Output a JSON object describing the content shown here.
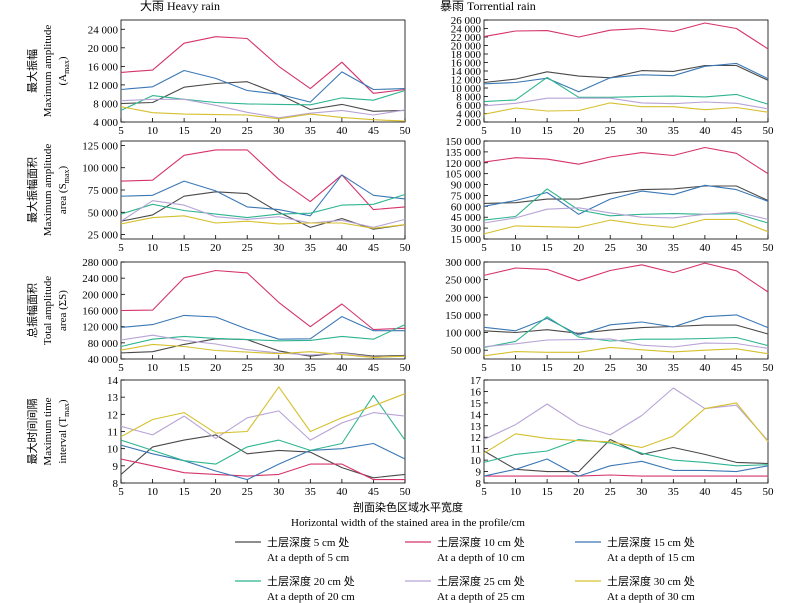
{
  "figure": {
    "column_titles": [
      "大雨 Heavy rain",
      "暴雨 Torrential rain"
    ],
    "row_labels": [
      {
        "zh": "最大振幅",
        "en": "Maximum amplitude",
        "sym": "(A",
        "sub": "max",
        "close": ")"
      },
      {
        "zh": "最大振幅面积",
        "en": "Maximum amplitude",
        "en2": "area",
        "sym": " (S",
        "sub": "max",
        "close": ")"
      },
      {
        "zh": "总振幅面积",
        "en": "Total amplitude",
        "en2": "area (ΣS)"
      },
      {
        "zh": "最大时间间隔",
        "en": "Maximum time",
        "en2": "interval (T",
        "sub": "max",
        "close": ")"
      }
    ],
    "xlabel_zh": "剖面染色区域水平宽度",
    "xlabel_en": "Horizontal width of the stained area in the profile/cm"
  },
  "legend": [
    {
      "zh": "土层深度 5 cm 处",
      "en": "At a depth of 5 cm",
      "color": "#4a4a4a"
    },
    {
      "zh": "土层深度 10 cm 处",
      "en": "At a depth of 10 cm",
      "color": "#d6336c"
    },
    {
      "zh": "土层深度 15 cm 处",
      "en": "At a depth of 15 cm",
      "color": "#3b78b5"
    },
    {
      "zh": "土层深度 20 cm 处",
      "en": "At a depth of 20 cm",
      "color": "#2eb58f"
    },
    {
      "zh": "土层深度 25 cm 处",
      "en": "At a depth of 25 cm",
      "color": "#b7a3d6"
    },
    {
      "zh": "土层深度 30 cm 处",
      "en": "At a depth of 30 cm",
      "color": "#d6c02e"
    }
  ],
  "chart_data": [
    {
      "type": "line",
      "panel": "heavy-amplitude",
      "x": [
        5,
        10,
        15,
        20,
        25,
        30,
        35,
        40,
        45,
        50
      ],
      "ylim": [
        4000,
        26000
      ],
      "yticks": [
        4000,
        8000,
        12000,
        16000,
        20000,
        24000
      ],
      "ytick_labels": [
        "4 000",
        "8 000",
        "12 000",
        "16 000",
        "20 000",
        "24 000"
      ],
      "series": [
        {
          "values": [
            8000,
            8200,
            11500,
            12300,
            12700,
            10000,
            6700,
            7800,
            6300,
            6500
          ]
        },
        {
          "values": [
            14700,
            15200,
            21000,
            22400,
            22000,
            16000,
            11200,
            16900,
            10200,
            11000
          ]
        },
        {
          "values": [
            11000,
            11600,
            15100,
            13400,
            10800,
            10000,
            8300,
            14800,
            11000,
            11200
          ]
        },
        {
          "values": [
            6500,
            9700,
            8900,
            8200,
            7900,
            7800,
            7700,
            9200,
            8700,
            10800
          ]
        },
        {
          "values": [
            8600,
            8900,
            8900,
            7600,
            6100,
            4900,
            5900,
            6500,
            5500,
            6600
          ]
        },
        {
          "values": [
            7300,
            6000,
            5700,
            5600,
            5500,
            4700,
            5700,
            5000,
            4500,
            4200
          ]
        }
      ]
    },
    {
      "type": "line",
      "panel": "torrential-amplitude",
      "x": [
        5,
        10,
        15,
        20,
        25,
        30,
        35,
        40,
        45,
        50
      ],
      "ylim": [
        2000,
        26000
      ],
      "yticks": [
        2000,
        4000,
        6000,
        8000,
        10000,
        12000,
        14000,
        16000,
        18000,
        20000,
        22000,
        24000,
        26000
      ],
      "ytick_labels": [
        "2 000",
        "4 000",
        "6 000",
        "8 000",
        "10 000",
        "12 000",
        "14 000",
        "16 000",
        "18 000",
        "20 000",
        "22 000",
        "24 000",
        "26 000"
      ],
      "series": [
        {
          "values": [
            11300,
            12100,
            13800,
            12800,
            12400,
            14100,
            13900,
            15300,
            15300,
            11800
          ]
        },
        {
          "values": [
            22100,
            23400,
            23500,
            22000,
            23600,
            24000,
            23300,
            25300,
            24000,
            19200
          ]
        },
        {
          "values": [
            11000,
            11300,
            12300,
            9100,
            12400,
            13100,
            12900,
            15100,
            15800,
            12200
          ]
        },
        {
          "values": [
            6800,
            7200,
            12500,
            7800,
            7800,
            8000,
            8100,
            7900,
            8500,
            6200
          ]
        },
        {
          "values": [
            5800,
            6400,
            7600,
            7600,
            7600,
            6500,
            6300,
            6700,
            6400,
            5100
          ]
        },
        {
          "values": [
            3800,
            5300,
            4600,
            4700,
            6500,
            5600,
            5600,
            4900,
            5400,
            4300
          ]
        }
      ]
    },
    {
      "type": "line",
      "panel": "heavy-max-area",
      "x": [
        5,
        10,
        15,
        20,
        25,
        30,
        35,
        40,
        45,
        50
      ],
      "ylim": [
        20000,
        130000
      ],
      "yticks": [
        25000,
        50000,
        75000,
        100000,
        125000
      ],
      "ytick_labels": [
        "25 000",
        "50 000",
        "75 000",
        "100 000",
        "125 000"
      ],
      "series": [
        {
          "values": [
            40000,
            47000,
            68000,
            73000,
            71000,
            50000,
            33000,
            43000,
            31000,
            36000
          ]
        },
        {
          "values": [
            85000,
            86000,
            114000,
            120000,
            120000,
            87000,
            62000,
            92000,
            53000,
            56000
          ]
        },
        {
          "values": [
            68000,
            69000,
            85000,
            74000,
            56000,
            53000,
            46000,
            92000,
            69000,
            65000
          ]
        },
        {
          "values": [
            48000,
            59000,
            52000,
            48000,
            44000,
            48000,
            49000,
            58000,
            59000,
            70000
          ]
        },
        {
          "values": [
            40000,
            63000,
            58000,
            45000,
            42000,
            45000,
            38000,
            41000,
            33000,
            42000
          ]
        },
        {
          "values": [
            37000,
            44000,
            46000,
            38000,
            40000,
            37000,
            38000,
            38000,
            32000,
            36000
          ]
        }
      ]
    },
    {
      "type": "line",
      "panel": "torrential-max-area",
      "x": [
        5,
        10,
        15,
        20,
        25,
        30,
        35,
        40,
        45,
        50
      ],
      "ylim": [
        15000,
        150000
      ],
      "yticks": [
        15000,
        30000,
        45000,
        60000,
        75000,
        90000,
        105000,
        120000,
        135000,
        150000
      ],
      "ytick_labels": [
        "15 000",
        "30 000",
        "45 000",
        "60 000",
        "75 000",
        "90 000",
        "105 000",
        "120 000",
        "135 000",
        "150 000"
      ],
      "series": [
        {
          "values": [
            64000,
            65000,
            70000,
            70000,
            78000,
            83000,
            84000,
            88000,
            88000,
            68000
          ]
        },
        {
          "values": [
            121000,
            127000,
            125000,
            118000,
            128000,
            134000,
            130000,
            141000,
            133000,
            105000
          ]
        },
        {
          "values": [
            60000,
            68000,
            79000,
            49000,
            70000,
            81000,
            76000,
            89000,
            83000,
            67000
          ]
        },
        {
          "values": [
            41000,
            46000,
            84000,
            55000,
            47000,
            49000,
            50000,
            49000,
            50000,
            37000
          ]
        },
        {
          "values": [
            37000,
            44000,
            56000,
            58000,
            51000,
            45000,
            44000,
            49000,
            52000,
            42000
          ]
        },
        {
          "values": [
            22000,
            33000,
            32000,
            31000,
            41000,
            35000,
            31000,
            42000,
            42000,
            25000
          ]
        }
      ]
    },
    {
      "type": "line",
      "panel": "heavy-total-area",
      "x": [
        5,
        10,
        15,
        20,
        25,
        30,
        35,
        40,
        45,
        50
      ],
      "ylim": [
        40000,
        280000
      ],
      "yticks": [
        40000,
        80000,
        120000,
        160000,
        200000,
        240000,
        280000
      ],
      "ytick_labels": [
        "40 000",
        "80 000",
        "120 000",
        "160 000",
        "200 000",
        "240 000",
        "280 000"
      ],
      "series": [
        {
          "values": [
            55000,
            58000,
            76000,
            90000,
            88000,
            60000,
            47000,
            56000,
            47000,
            49000
          ]
        },
        {
          "values": [
            160000,
            161000,
            241000,
            259000,
            253000,
            180000,
            120000,
            176000,
            113000,
            116000
          ]
        },
        {
          "values": [
            118000,
            125000,
            148000,
            144000,
            114000,
            89000,
            90000,
            145000,
            110000,
            110000
          ]
        },
        {
          "values": [
            71000,
            89000,
            96000,
            91000,
            88000,
            85000,
            86000,
            96000,
            89000,
            125000
          ]
        },
        {
          "values": [
            87000,
            99000,
            86000,
            77000,
            63000,
            55000,
            50000,
            55000,
            45000,
            47000
          ]
        },
        {
          "values": [
            62000,
            76000,
            71000,
            61000,
            57000,
            53000,
            58000,
            51000,
            44000,
            47000
          ]
        }
      ]
    },
    {
      "type": "line",
      "panel": "torrential-total-area",
      "x": [
        5,
        10,
        15,
        20,
        25,
        30,
        35,
        40,
        45,
        50
      ],
      "ylim": [
        25000,
        300000
      ],
      "yticks": [
        50000,
        100000,
        150000,
        200000,
        250000,
        300000
      ],
      "ytick_labels": [
        "50 000",
        "100 000",
        "150 000",
        "200 000",
        "250 000",
        "300 000"
      ],
      "series": [
        {
          "values": [
            105000,
            100000,
            108000,
            98000,
            107000,
            114000,
            117000,
            121000,
            121000,
            96000
          ]
        },
        {
          "values": [
            262000,
            283000,
            279000,
            247000,
            276000,
            292000,
            270000,
            297000,
            275000,
            215000
          ]
        },
        {
          "values": [
            115000,
            105000,
            140000,
            93000,
            122000,
            130000,
            116000,
            145000,
            150000,
            114000
          ]
        },
        {
          "values": [
            58000,
            75000,
            145000,
            87000,
            76000,
            81000,
            81000,
            83000,
            86000,
            63000
          ]
        },
        {
          "values": [
            60000,
            68000,
            79000,
            80000,
            82000,
            64000,
            59000,
            70000,
            69000,
            55000
          ]
        },
        {
          "values": [
            34000,
            46000,
            44000,
            44000,
            58000,
            51000,
            45000,
            50000,
            54000,
            40000
          ]
        }
      ]
    },
    {
      "type": "line",
      "panel": "heavy-time-interval",
      "x": [
        5,
        10,
        15,
        20,
        25,
        30,
        35,
        40,
        45,
        50
      ],
      "ylim": [
        8,
        14
      ],
      "yticks": [
        8,
        9,
        10,
        11,
        12,
        13,
        14
      ],
      "ytick_labels": [
        "8",
        "9",
        "10",
        "11",
        "12",
        "13",
        "14"
      ],
      "series": [
        {
          "values": [
            8.5,
            10.1,
            10.5,
            10.8,
            9.7,
            9.9,
            9.8,
            8.9,
            8.3,
            8.5
          ]
        },
        {
          "values": [
            9.4,
            9.0,
            8.6,
            8.5,
            8.4,
            8.5,
            9.1,
            9.1,
            8.2,
            8.2
          ]
        },
        {
          "values": [
            10.2,
            9.7,
            9.3,
            8.7,
            8.2,
            9.1,
            9.9,
            10.0,
            10.3,
            9.4
          ]
        },
        {
          "values": [
            10.5,
            9.9,
            9.3,
            9.1,
            10.1,
            10.5,
            9.9,
            10.3,
            13.1,
            10.5
          ]
        },
        {
          "values": [
            11.3,
            10.8,
            11.9,
            10.6,
            11.8,
            12.2,
            10.5,
            11.5,
            12.1,
            11.9
          ]
        },
        {
          "values": [
            10.7,
            11.7,
            12.1,
            10.9,
            11.0,
            13.6,
            11.0,
            11.8,
            12.5,
            13.2
          ]
        }
      ]
    },
    {
      "type": "line",
      "panel": "torrential-time-interval",
      "x": [
        5,
        10,
        15,
        20,
        25,
        30,
        35,
        40,
        45,
        50
      ],
      "ylim": [
        8,
        17
      ],
      "yticks": [
        8,
        9,
        10,
        11,
        12,
        13,
        14,
        15,
        16,
        17
      ],
      "ytick_labels": [
        "8",
        "9",
        "10",
        "11",
        "12",
        "13",
        "14",
        "15",
        "16",
        "17"
      ],
      "series": [
        {
          "values": [
            10.8,
            9.2,
            9.0,
            9.0,
            11.8,
            10.5,
            11.1,
            10.5,
            9.8,
            9.7
          ]
        },
        {
          "values": [
            8.6,
            8.6,
            8.6,
            8.6,
            8.7,
            8.6,
            8.6,
            8.6,
            8.6,
            8.6
          ]
        },
        {
          "values": [
            8.6,
            9.2,
            10.1,
            8.6,
            9.5,
            9.9,
            9.1,
            9.1,
            9.0,
            9.5
          ]
        },
        {
          "values": [
            9.8,
            10.5,
            10.8,
            11.8,
            11.5,
            10.6,
            10.0,
            9.8,
            9.5,
            9.6
          ]
        },
        {
          "values": [
            11.8,
            13.1,
            14.9,
            13.1,
            12.2,
            13.9,
            16.3,
            14.5,
            14.8,
            11.7
          ]
        },
        {
          "values": [
            10.6,
            12.3,
            11.9,
            11.7,
            11.6,
            11.1,
            12.1,
            14.5,
            15.0,
            11.6
          ]
        }
      ]
    }
  ]
}
